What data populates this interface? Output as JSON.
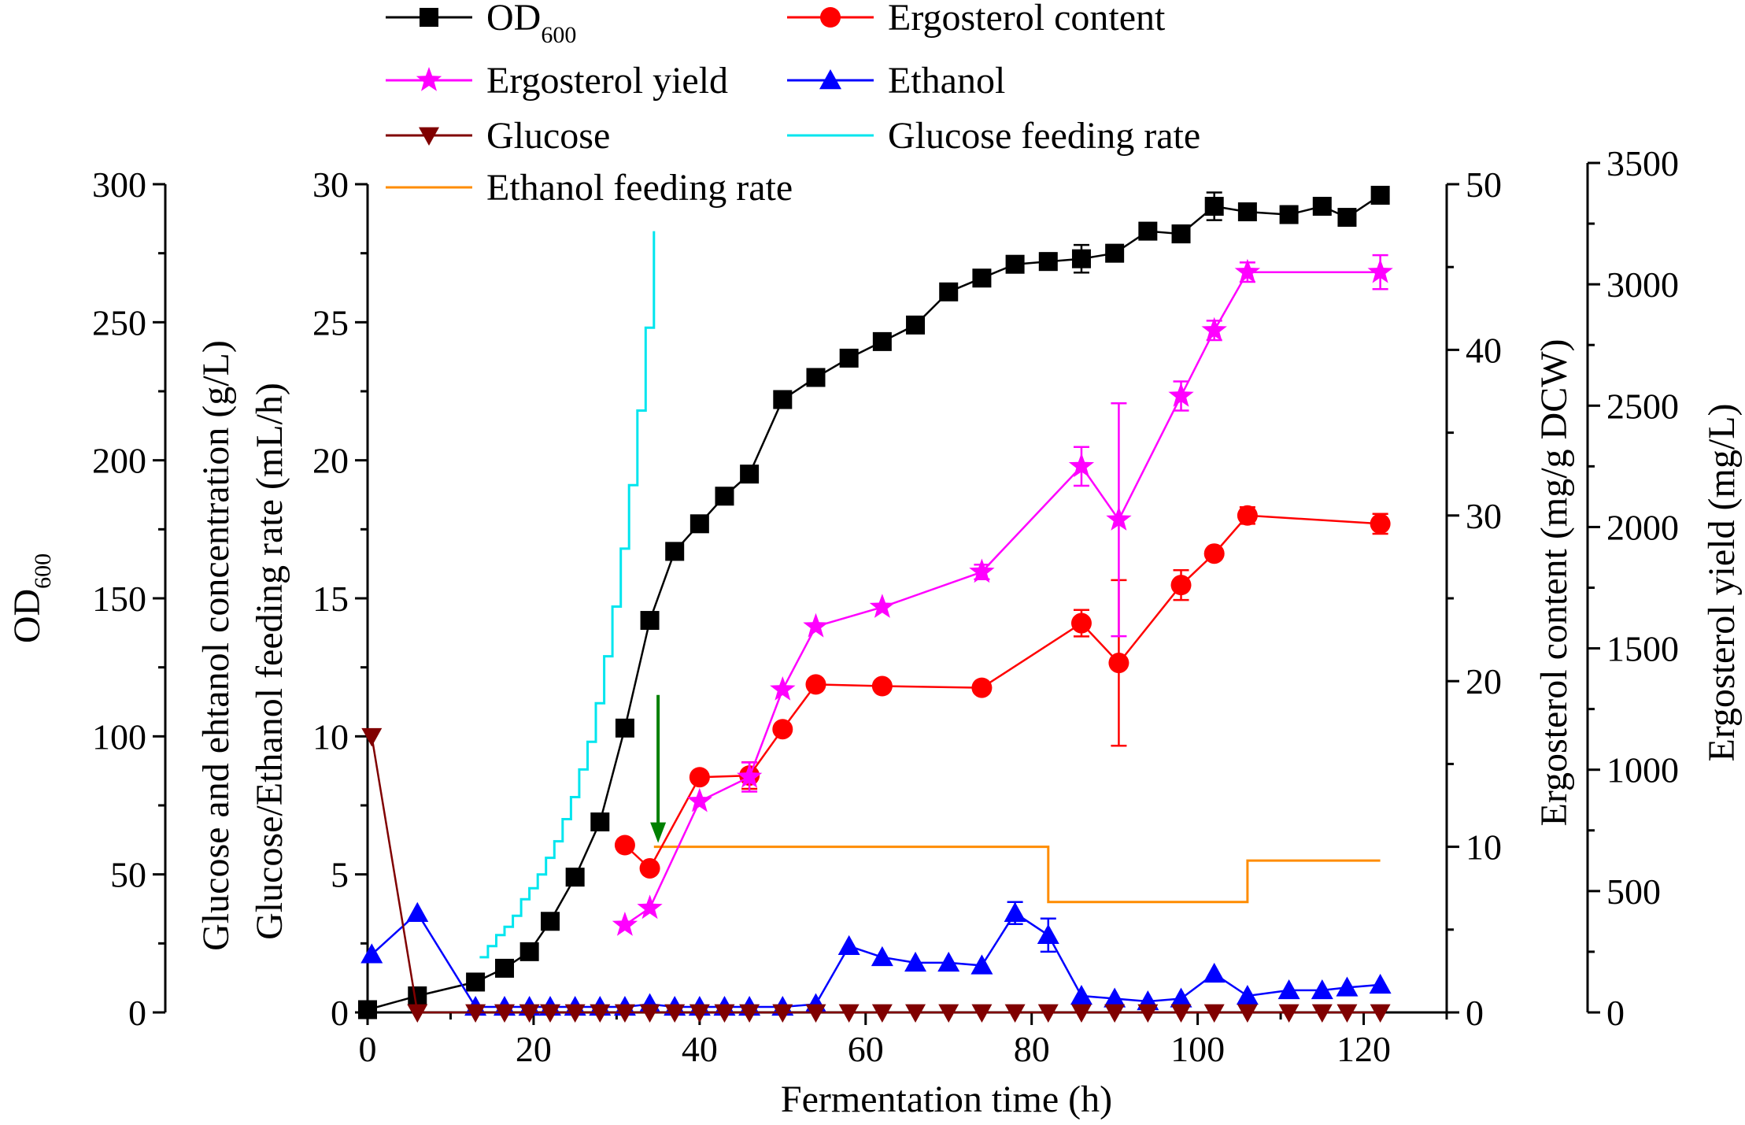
{
  "chart_data": {
    "type": "line",
    "x_axis": {
      "label": "Fermentation time (h)",
      "range": [
        0,
        130
      ],
      "ticks": [
        0,
        20,
        40,
        60,
        80,
        100,
        120
      ]
    },
    "y_axes": {
      "od": {
        "label": "OD",
        "label_subscript": "600",
        "range": [
          0,
          300
        ],
        "ticks": [
          0,
          50,
          100,
          150,
          200,
          250,
          300
        ]
      },
      "conc": {
        "label_line1": "Glucose and ehtanol concentration (g/L)",
        "label_line2": "Glucose/Ethanol feeding rate (mL/h)",
        "range": [
          0,
          30
        ],
        "ticks": [
          0,
          5,
          10,
          15,
          20,
          25,
          30
        ]
      },
      "content": {
        "label": "Ergosterol content (mg/g DCW)",
        "range": [
          0,
          50
        ],
        "ticks": [
          0,
          10,
          20,
          30,
          40,
          50
        ]
      },
      "yield": {
        "label": "Ergosterol yield (mg/L)",
        "range": [
          0,
          3500
        ],
        "ticks": [
          0,
          500,
          1000,
          1500,
          2000,
          2500,
          3000,
          3500
        ]
      }
    },
    "legend": [
      {
        "label": "OD",
        "subscript": "600",
        "color": "#000000",
        "marker": "square"
      },
      {
        "label": "Ergosterol content",
        "color": "#ff0000",
        "marker": "circle"
      },
      {
        "label": "Ergosterol yield",
        "color": "#ff00ff",
        "marker": "star"
      },
      {
        "label": "Ethanol",
        "color": "#0000ff",
        "marker": "triangle-up"
      },
      {
        "label": "Glucose",
        "color": "#800000",
        "marker": "triangle-down"
      },
      {
        "label": "Glucose feeding rate",
        "color": "#00e5ee",
        "marker": "none"
      },
      {
        "label": "Ethanol feeding rate",
        "color": "#ff8c00",
        "marker": "none"
      }
    ],
    "series": [
      {
        "name": "OD600",
        "axis": "od",
        "color": "#000000",
        "marker": "square",
        "x": [
          0,
          6,
          13,
          16.5,
          19.5,
          22,
          25,
          28,
          31,
          34,
          37,
          40,
          43,
          46,
          50,
          54,
          58,
          62,
          66,
          70,
          74,
          78,
          82,
          86,
          90,
          94,
          98,
          102,
          106,
          111,
          115,
          118,
          122
        ],
        "y": [
          1,
          6,
          11,
          16,
          22,
          33,
          49,
          69,
          103,
          142,
          167,
          177,
          187,
          195,
          222,
          230,
          237,
          243,
          249,
          261,
          266,
          271,
          272,
          273,
          275,
          283,
          282,
          292,
          290,
          289,
          292,
          288,
          296
        ],
        "err": [
          0,
          0,
          0,
          0,
          0,
          0,
          0,
          0,
          0,
          0,
          0,
          0,
          0,
          0,
          0,
          0,
          0,
          0,
          0,
          2,
          2,
          0,
          3,
          5,
          3,
          0,
          3,
          5,
          0,
          3,
          3,
          0,
          0
        ]
      },
      {
        "name": "Ergosterol content",
        "axis": "content",
        "color": "#ff0000",
        "marker": "circle",
        "x": [
          31,
          34,
          40,
          46,
          50,
          54,
          62,
          74,
          86,
          90.5,
          98,
          102,
          106,
          122
        ],
        "y": [
          10.1,
          8.7,
          14.2,
          14.3,
          17.1,
          19.8,
          19.7,
          19.6,
          23.5,
          21.1,
          25.8,
          27.7,
          30.0,
          29.5
        ],
        "err": [
          0,
          0,
          0,
          0.8,
          0,
          0,
          0,
          0,
          0.8,
          5.0,
          0.9,
          0,
          0.5,
          0.6
        ]
      },
      {
        "name": "Ergosterol yield",
        "axis": "yield",
        "color": "#ff00ff",
        "marker": "star",
        "x": [
          31,
          34,
          40,
          46,
          50,
          54,
          62,
          74,
          86,
          90.5,
          98,
          102,
          106,
          122
        ],
        "y": [
          360,
          430,
          870,
          970,
          1330,
          1590,
          1670,
          1815,
          2250,
          2030,
          2540,
          2810,
          3050,
          3050
        ],
        "err": [
          0,
          0,
          0,
          60,
          0,
          0,
          0,
          30,
          80,
          480,
          60,
          40,
          40,
          70
        ]
      },
      {
        "name": "Ethanol",
        "axis": "conc",
        "color": "#0000ff",
        "marker": "triangle-up",
        "x": [
          0.5,
          6,
          13,
          16.5,
          19.5,
          22,
          25,
          28,
          31,
          34,
          37,
          40,
          43,
          46,
          50,
          54,
          58,
          62,
          66,
          70,
          74,
          78,
          82,
          86,
          90,
          94,
          98,
          102,
          106,
          111,
          115,
          118,
          122
        ],
        "y": [
          2.1,
          3.6,
          0.2,
          0.2,
          0.2,
          0.2,
          0.2,
          0.2,
          0.2,
          0.3,
          0.2,
          0.2,
          0.2,
          0.2,
          0.2,
          0.3,
          2.4,
          2.0,
          1.8,
          1.8,
          1.7,
          3.6,
          2.8,
          0.6,
          0.5,
          0.4,
          0.5,
          1.4,
          0.6,
          0.8,
          0.8,
          0.9,
          1.0
        ],
        "err": [
          0,
          0,
          0,
          0,
          0,
          0,
          0,
          0,
          0,
          0,
          0,
          0,
          0,
          0,
          0,
          0,
          0,
          0,
          0,
          0,
          0,
          0.4,
          0.6,
          0,
          0,
          0,
          0,
          0,
          0,
          0,
          0,
          0,
          0
        ]
      },
      {
        "name": "Glucose",
        "axis": "conc",
        "color": "#800000",
        "marker": "triangle-down",
        "x": [
          0.5,
          6,
          13,
          16.5,
          19.5,
          22,
          25,
          28,
          31,
          34,
          37,
          40,
          43,
          46,
          50,
          54,
          58,
          62,
          66,
          70,
          74,
          78,
          82,
          86,
          90,
          94,
          98,
          102,
          106,
          111,
          115,
          118,
          122
        ],
        "y": [
          10,
          0,
          0,
          0,
          0,
          0,
          0,
          0,
          0,
          0,
          0,
          0,
          0,
          0,
          0,
          0,
          0,
          0,
          0,
          0,
          0,
          0,
          0,
          0,
          0,
          0,
          0,
          0,
          0,
          0,
          0,
          0,
          0
        ]
      },
      {
        "name": "Glucose feeding rate",
        "axis": "conc",
        "color": "#00e5ee",
        "marker": "none",
        "step": true,
        "x": [
          13.5,
          14.5,
          15.5,
          16.5,
          17.5,
          18.5,
          19.5,
          20.5,
          21.5,
          22.5,
          23.5,
          24.5,
          25.5,
          26.5,
          27.5,
          28.5,
          29.5,
          30.5,
          31.5,
          32.5,
          33.5,
          34.5
        ],
        "y": [
          2.0,
          2.4,
          2.8,
          3.1,
          3.5,
          4.1,
          4.5,
          5.0,
          5.6,
          6.2,
          7.0,
          7.8,
          8.8,
          9.8,
          11.2,
          12.9,
          14.7,
          16.8,
          19.1,
          21.8,
          24.8,
          28.3
        ]
      },
      {
        "name": "Ethanol feeding rate",
        "axis": "conc",
        "color": "#ff8c00",
        "marker": "none",
        "step": true,
        "x": [
          34.5,
          82,
          106,
          122
        ],
        "y": [
          6.0,
          4.0,
          5.5,
          5.5
        ]
      }
    ],
    "annotations": [
      {
        "type": "arrow",
        "color": "#008000",
        "x": 35,
        "y_from": 11.5,
        "y_to": 6.2,
        "axis": "conc",
        "meaning": "start of ethanol feeding"
      }
    ]
  }
}
